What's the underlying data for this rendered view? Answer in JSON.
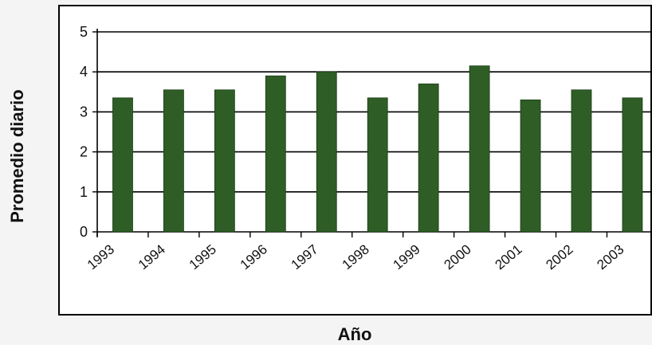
{
  "chart_data": {
    "type": "bar",
    "xlabel": "Año",
    "ylabel": "Promedio diario",
    "categories": [
      "1993",
      "1994",
      "1995",
      "1996",
      "1997",
      "1998",
      "1999",
      "2000",
      "2001",
      "2002",
      "2003"
    ],
    "values": [
      3.35,
      3.55,
      3.55,
      3.9,
      4.0,
      3.35,
      3.7,
      4.15,
      3.3,
      3.55,
      3.35
    ],
    "ylim": [
      0,
      5
    ],
    "yticks": [
      "0",
      "1",
      "2",
      "3",
      "4",
      "5"
    ],
    "grid": true,
    "legend": "none",
    "bar_color": "#2e5e25",
    "grid_color": "#000000"
  }
}
